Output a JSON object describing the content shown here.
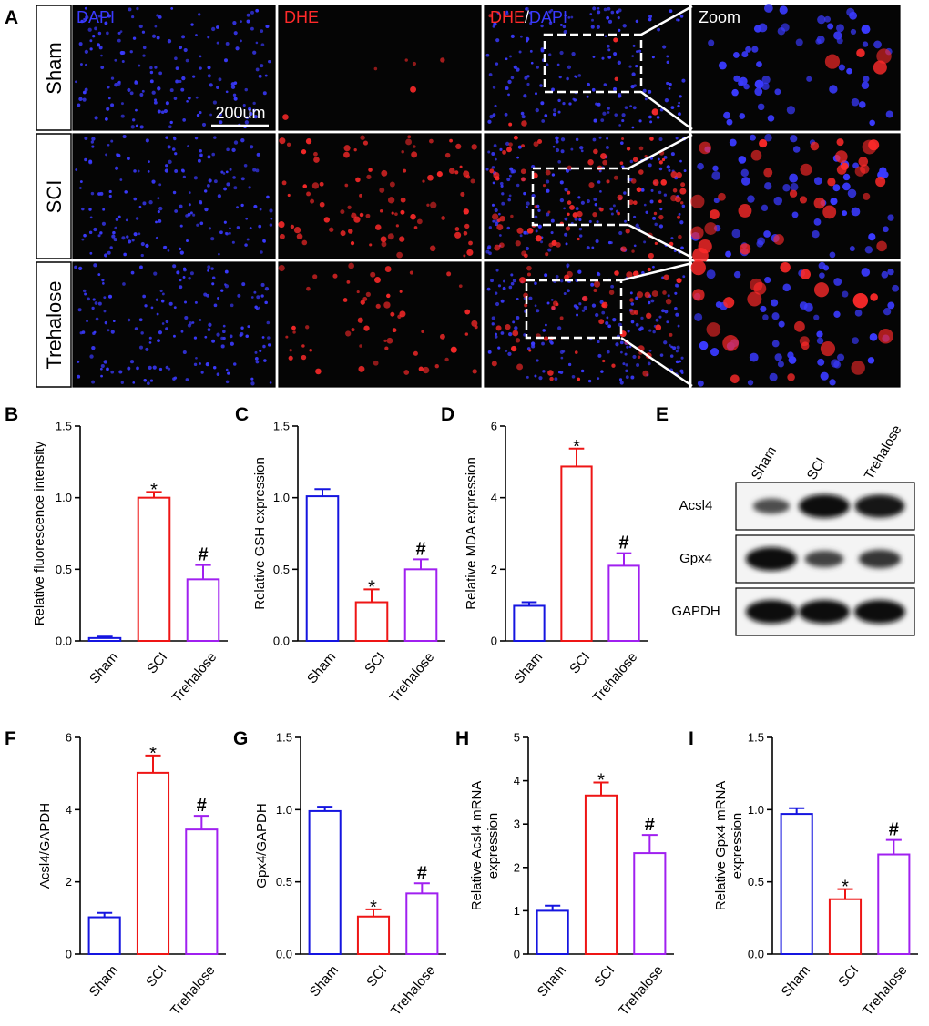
{
  "panel_letters": [
    "A",
    "B",
    "C",
    "D",
    "E",
    "F",
    "G",
    "H",
    "I"
  ],
  "microscopy": {
    "column_labels": {
      "dapi": "DAPI",
      "dhe": "DHE",
      "slash": "/",
      "zoom": "Zoom"
    },
    "row_labels": [
      "Sham",
      "SCI",
      "Trehalose"
    ],
    "scale_bar_label": "200um",
    "colors": {
      "dapi": "#3a3aff",
      "dhe": "#ff2a2a",
      "background": "#050505"
    }
  },
  "western_blot": {
    "lanes": [
      "Sham",
      "SCI",
      "Trehalose"
    ],
    "rows": [
      {
        "label": "Acsl4",
        "intensity": [
          0.35,
          1.0,
          0.95
        ]
      },
      {
        "label": "Gpx4",
        "intensity": [
          1.0,
          0.45,
          0.6
        ]
      },
      {
        "label": "GAPDH",
        "intensity": [
          1.0,
          1.0,
          1.0
        ]
      }
    ]
  },
  "chart_data": [
    {
      "id": "B",
      "type": "bar",
      "categories": [
        "Sham",
        "SCI",
        "Trehalose"
      ],
      "values": [
        0.02,
        1.0,
        0.43
      ],
      "errors": [
        0.01,
        0.04,
        0.1
      ],
      "ylim": [
        0,
        1.5
      ],
      "yticks": [
        0.0,
        0.5,
        1.0,
        1.5
      ],
      "tick_labels": [
        "0.0",
        "0.5",
        "1.0",
        "1.5"
      ],
      "ylabel": [
        "Relative fluorescence intensity"
      ],
      "annotations": [
        "",
        "*",
        "#"
      ],
      "colors": [
        "#1515e0",
        "#ee1515",
        "#a020f0"
      ]
    },
    {
      "id": "C",
      "type": "bar",
      "categories": [
        "Sham",
        "SCI",
        "Trehalose"
      ],
      "values": [
        1.01,
        0.27,
        0.5
      ],
      "errors": [
        0.05,
        0.09,
        0.07
      ],
      "ylim": [
        0,
        1.5
      ],
      "yticks": [
        0.0,
        0.5,
        1.0,
        1.5
      ],
      "tick_labels": [
        "0.0",
        "0.5",
        "1.0",
        "1.5"
      ],
      "ylabel": [
        "Relative GSH expression"
      ],
      "annotations": [
        "",
        "*",
        "#"
      ],
      "colors": [
        "#1515e0",
        "#ee1515",
        "#a020f0"
      ]
    },
    {
      "id": "D",
      "type": "bar",
      "categories": [
        "Sham",
        "SCI",
        "Trehalose"
      ],
      "values": [
        0.98,
        4.87,
        2.1
      ],
      "errors": [
        0.1,
        0.5,
        0.35
      ],
      "ylim": [
        0,
        6
      ],
      "yticks": [
        0,
        2,
        4,
        6
      ],
      "tick_labels": [
        "0",
        "2",
        "4",
        "6"
      ],
      "ylabel": [
        "Relative MDA expression"
      ],
      "annotations": [
        "",
        "*",
        "#"
      ],
      "colors": [
        "#1515e0",
        "#ee1515",
        "#a020f0"
      ]
    },
    {
      "id": "F",
      "type": "bar",
      "categories": [
        "Sham",
        "SCI",
        "Trehalose"
      ],
      "values": [
        1.02,
        5.02,
        3.45
      ],
      "errors": [
        0.12,
        0.48,
        0.38
      ],
      "ylim": [
        0,
        6
      ],
      "yticks": [
        0,
        2,
        4,
        6
      ],
      "tick_labels": [
        "0",
        "2",
        "4",
        "6"
      ],
      "ylabel": [
        "Acsl4/GAPDH"
      ],
      "annotations": [
        "",
        "*",
        "#"
      ],
      "colors": [
        "#1515e0",
        "#ee1515",
        "#a020f0"
      ]
    },
    {
      "id": "G",
      "type": "bar",
      "categories": [
        "Sham",
        "SCI",
        "Trehalose"
      ],
      "values": [
        0.99,
        0.26,
        0.42
      ],
      "errors": [
        0.03,
        0.05,
        0.07
      ],
      "ylim": [
        0,
        1.5
      ],
      "yticks": [
        0.0,
        0.5,
        1.0,
        1.5
      ],
      "tick_labels": [
        "0.0",
        "0.5",
        "1.0",
        "1.5"
      ],
      "ylabel": [
        "Gpx4/GAPDH"
      ],
      "annotations": [
        "",
        "*",
        "#"
      ],
      "colors": [
        "#1515e0",
        "#ee1515",
        "#a020f0"
      ]
    },
    {
      "id": "H",
      "type": "bar",
      "categories": [
        "Sham",
        "SCI",
        "Trehalose"
      ],
      "values": [
        1.0,
        3.66,
        2.33
      ],
      "errors": [
        0.12,
        0.3,
        0.42
      ],
      "ylim": [
        0,
        5
      ],
      "yticks": [
        0,
        1,
        2,
        3,
        4,
        5
      ],
      "tick_labels": [
        "0",
        "1",
        "2",
        "3",
        "4",
        "5"
      ],
      "ylabel": [
        "Relative Acsl4 mRNA",
        "expression"
      ],
      "annotations": [
        "",
        "*",
        "#"
      ],
      "colors": [
        "#1515e0",
        "#ee1515",
        "#a020f0"
      ]
    },
    {
      "id": "I",
      "type": "bar",
      "categories": [
        "Sham",
        "SCI",
        "Trehalose"
      ],
      "values": [
        0.97,
        0.38,
        0.69
      ],
      "errors": [
        0.04,
        0.07,
        0.1
      ],
      "ylim": [
        0,
        1.5
      ],
      "yticks": [
        0.0,
        0.5,
        1.0,
        1.5
      ],
      "tick_labels": [
        "0.0",
        "0.5",
        "1.0",
        "1.5"
      ],
      "ylabel": [
        "Relative Gpx4 mRNA",
        "expression"
      ],
      "annotations": [
        "",
        "*",
        "#"
      ],
      "colors": [
        "#1515e0",
        "#ee1515",
        "#a020f0"
      ]
    }
  ]
}
